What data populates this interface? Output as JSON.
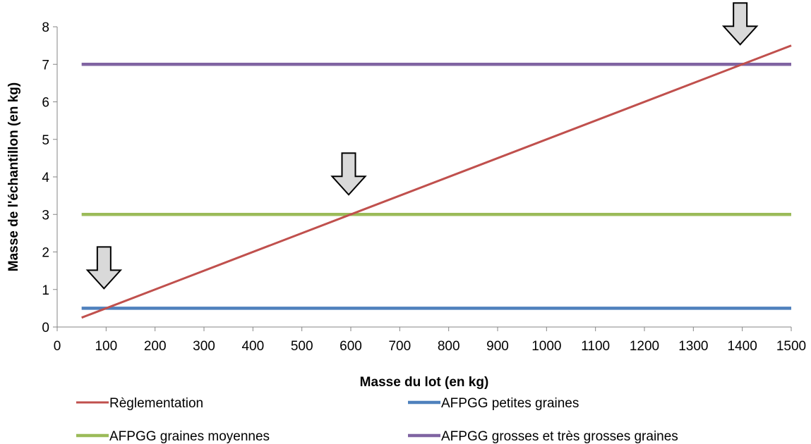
{
  "chart_data": {
    "type": "line",
    "title": "",
    "xlabel": "Masse du lot (en kg)",
    "ylabel": "Masse de l'échantillon (en kg)",
    "xlim": [
      0,
      1500
    ],
    "ylim": [
      0,
      8
    ],
    "x_ticks": [
      0,
      100,
      200,
      300,
      400,
      500,
      600,
      700,
      800,
      900,
      1000,
      1100,
      1200,
      1300,
      1400,
      1500
    ],
    "y_ticks": [
      0,
      1,
      2,
      3,
      4,
      5,
      6,
      7,
      8
    ],
    "grid": false,
    "legend_position": "bottom",
    "series": [
      {
        "name": "Règlementation",
        "color": "#c0504d",
        "x": [
          50,
          1500
        ],
        "y": [
          0.25,
          7.5
        ]
      },
      {
        "name": "AFPGG petites graines",
        "color": "#4f81bd",
        "x": [
          50,
          1500
        ],
        "y": [
          0.5,
          0.5
        ]
      },
      {
        "name": "AFPGG graines moyennes",
        "color": "#9bbb59",
        "x": [
          50,
          1500
        ],
        "y": [
          3,
          3
        ]
      },
      {
        "name": "AFPGG grosses et très grosses graines",
        "color": "#8064a2",
        "x": [
          50,
          1500
        ],
        "y": [
          7,
          7
        ]
      }
    ],
    "annotations": [
      {
        "type": "down-arrow",
        "x": 100,
        "y": 0.5
      },
      {
        "type": "down-arrow",
        "x": 600,
        "y": 3
      },
      {
        "type": "down-arrow",
        "x": 1400,
        "y": 7
      }
    ]
  }
}
